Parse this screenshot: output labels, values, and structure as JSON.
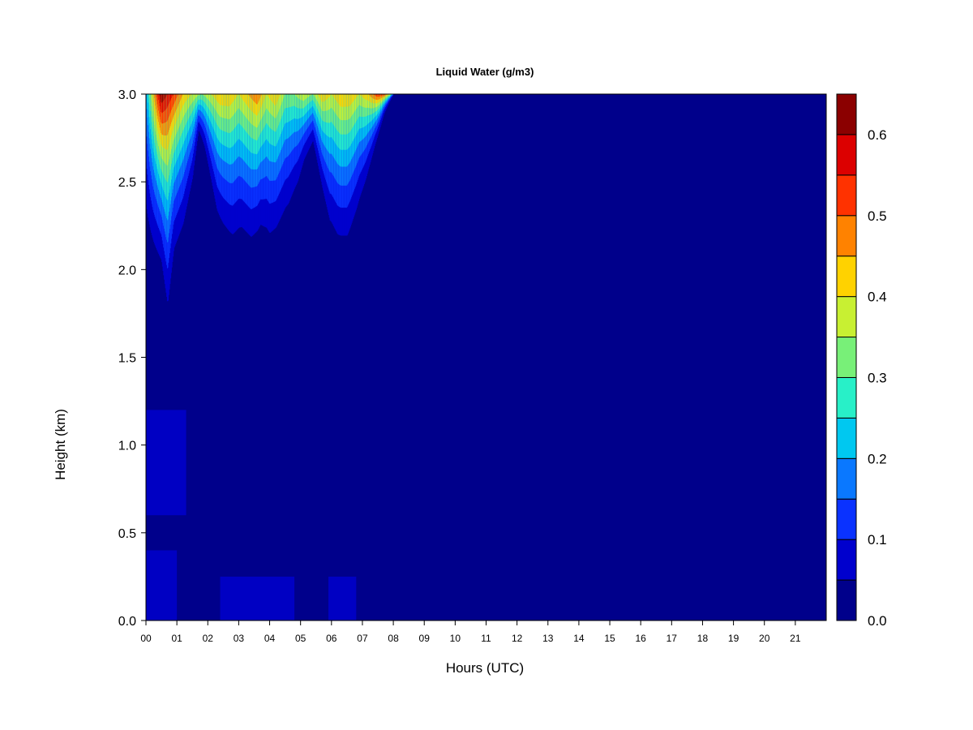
{
  "chart_data": {
    "type": "heatmap",
    "title": "Liquid Water (g/m3)",
    "xlabel": "Hours (UTC)",
    "ylabel": "Height (km)",
    "xlim": [
      0,
      22
    ],
    "ylim": [
      0,
      3
    ],
    "x_ticks": [
      "00",
      "01",
      "02",
      "03",
      "04",
      "05",
      "06",
      "07",
      "08",
      "09",
      "10",
      "11",
      "12",
      "13",
      "14",
      "15",
      "16",
      "17",
      "18",
      "19",
      "20",
      "21"
    ],
    "y_ticks": [
      "0.0",
      "0.5",
      "1.0",
      "1.5",
      "2.0",
      "2.5",
      "3.0"
    ],
    "colorbar": {
      "levels": [
        0.0,
        0.05,
        0.1,
        0.15,
        0.2,
        0.25,
        0.3,
        0.35,
        0.4,
        0.45,
        0.5,
        0.55,
        0.6,
        0.65
      ],
      "colors": [
        "#00008B",
        "#0000CD",
        "#0A32FF",
        "#0A78FF",
        "#00C8F0",
        "#28F0C8",
        "#78F078",
        "#C8F032",
        "#FFD200",
        "#FF8200",
        "#FF3200",
        "#DC0000",
        "#8B0000"
      ],
      "tick_labels": [
        "0.0",
        "0.1",
        "0.2",
        "0.3",
        "0.4",
        "0.5",
        "0.6"
      ]
    },
    "cloud_top_height_km": 3.0,
    "cloud_base_height_km": [
      [
        0.0,
        1.85
      ],
      [
        0.25,
        1.8
      ],
      [
        0.5,
        1.75
      ],
      [
        0.7,
        1.4
      ],
      [
        0.9,
        1.8
      ],
      [
        1.2,
        1.95
      ],
      [
        1.5,
        2.3
      ],
      [
        1.7,
        2.7
      ],
      [
        1.9,
        2.55
      ],
      [
        2.1,
        2.3
      ],
      [
        2.3,
        2.05
      ],
      [
        2.5,
        1.95
      ],
      [
        2.8,
        1.85
      ],
      [
        3.1,
        1.9
      ],
      [
        3.4,
        1.85
      ],
      [
        3.7,
        1.95
      ],
      [
        4.0,
        1.85
      ],
      [
        4.3,
        1.95
      ],
      [
        4.6,
        2.05
      ],
      [
        4.9,
        2.25
      ],
      [
        5.1,
        2.45
      ],
      [
        5.4,
        2.6
      ],
      [
        5.7,
        2.25
      ],
      [
        5.95,
        1.95
      ],
      [
        6.2,
        1.85
      ],
      [
        6.5,
        1.85
      ],
      [
        6.8,
        2.05
      ],
      [
        7.1,
        2.3
      ],
      [
        7.4,
        2.6
      ],
      [
        7.7,
        2.85
      ],
      [
        7.9,
        2.95
      ],
      [
        8.0,
        3.0
      ]
    ],
    "max_lwc_core": [
      [
        0.0,
        0.2
      ],
      [
        0.25,
        0.45
      ],
      [
        0.5,
        0.65
      ],
      [
        0.7,
        0.6
      ],
      [
        0.9,
        0.55
      ],
      [
        1.2,
        0.45
      ],
      [
        1.5,
        0.4
      ],
      [
        1.8,
        0.35
      ],
      [
        2.1,
        0.4
      ],
      [
        2.4,
        0.45
      ],
      [
        2.7,
        0.45
      ],
      [
        3.0,
        0.4
      ],
      [
        3.3,
        0.45
      ],
      [
        3.6,
        0.5
      ],
      [
        3.9,
        0.4
      ],
      [
        4.2,
        0.45
      ],
      [
        4.5,
        0.35
      ],
      [
        4.8,
        0.35
      ],
      [
        5.1,
        0.4
      ],
      [
        5.4,
        0.35
      ],
      [
        5.7,
        0.45
      ],
      [
        6.0,
        0.4
      ],
      [
        6.3,
        0.45
      ],
      [
        6.6,
        0.45
      ],
      [
        6.9,
        0.4
      ],
      [
        7.2,
        0.45
      ],
      [
        7.5,
        0.55
      ],
      [
        7.7,
        0.55
      ],
      [
        7.9,
        0.4
      ],
      [
        8.0,
        0.3
      ]
    ],
    "low_level_drizzle": [
      {
        "x_start": 0.0,
        "x_end": 1.3,
        "y_bottom": 0.6,
        "y_top": 1.2,
        "value": 0.08
      },
      {
        "x_start": 0.0,
        "x_end": 1.0,
        "y_bottom": 0.0,
        "y_top": 0.4,
        "value": 0.07
      },
      {
        "x_start": 2.4,
        "x_end": 4.8,
        "y_bottom": 0.0,
        "y_top": 0.25,
        "value": 0.06
      },
      {
        "x_start": 5.9,
        "x_end": 6.8,
        "y_bottom": 0.0,
        "y_top": 0.25,
        "value": 0.06
      }
    ]
  }
}
